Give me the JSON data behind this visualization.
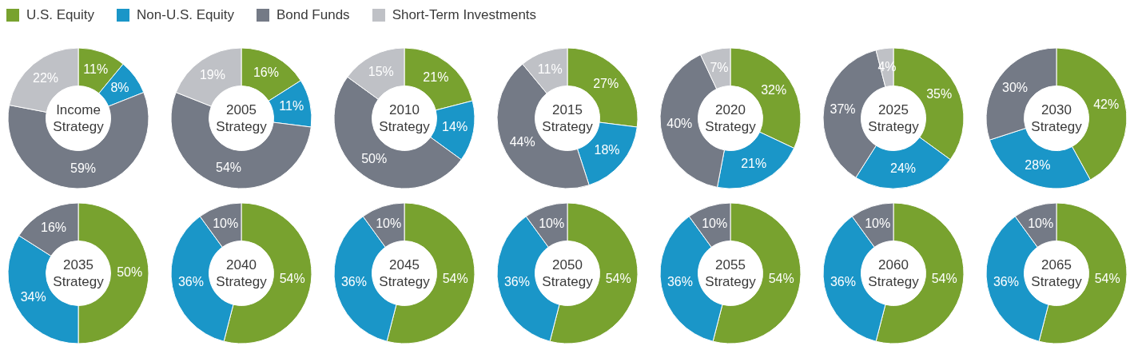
{
  "chart_data": [
    {
      "type": "donut",
      "title": "Income Strategy",
      "categories": [
        "U.S. Equity",
        "Non-U.S. Equity",
        "Bond Funds",
        "Short-Term Investments"
      ],
      "values": [
        11,
        8,
        59,
        22
      ],
      "value_labels": [
        "11%",
        "8%",
        "59%",
        "22%"
      ],
      "colors": [
        "#78a22f",
        "#1a96c8",
        "#747a86",
        "#bfc1c6"
      ],
      "legend": "top"
    },
    {
      "type": "donut",
      "title": "2005 Strategy",
      "categories": [
        null,
        null,
        null,
        null
      ],
      "values": [
        16,
        11,
        54,
        19
      ],
      "value_labels": [
        "16%",
        "11%",
        "54%",
        "19%"
      ],
      "colors": [
        "#78a22f",
        "#1a96c8",
        "#747a86",
        "#bfc1c6"
      ]
    },
    {
      "type": "donut",
      "title": "2010 Strategy",
      "categories": [
        null,
        null,
        null,
        null
      ],
      "values": [
        21,
        14,
        50,
        15
      ],
      "value_labels": [
        "21%",
        "14%",
        "50%",
        "15%"
      ],
      "colors": [
        "#78a22f",
        "#1a96c8",
        "#747a86",
        "#bfc1c6"
      ]
    },
    {
      "type": "donut",
      "title": "2015 Strategy",
      "categories": [
        null,
        null,
        null,
        null
      ],
      "values": [
        27,
        18,
        44,
        11
      ],
      "value_labels": [
        "27%",
        "18%",
        "44%",
        "11%"
      ],
      "colors": [
        "#78a22f",
        "#1a96c8",
        "#747a86",
        "#bfc1c6"
      ]
    },
    {
      "type": "donut",
      "title": "2020 Strategy",
      "categories": [
        null,
        null,
        null,
        null
      ],
      "values": [
        32,
        21,
        40,
        7
      ],
      "value_labels": [
        "32%",
        "21%",
        "40%",
        "7%"
      ],
      "colors": [
        "#78a22f",
        "#1a96c8",
        "#747a86",
        "#bfc1c6"
      ]
    },
    {
      "type": "donut",
      "title": "2025 Strategy",
      "categories": [
        null,
        null,
        null,
        null
      ],
      "values": [
        35,
        24,
        37,
        4
      ],
      "value_labels": [
        "35%",
        "24%",
        "37%",
        "4%"
      ],
      "colors": [
        "#78a22f",
        "#1a96c8",
        "#747a86",
        "#bfc1c6"
      ]
    },
    {
      "type": "donut",
      "title": "2030 Strategy",
      "categories": [
        null,
        null,
        null
      ],
      "values": [
        42,
        28,
        30
      ],
      "value_labels": [
        "42%",
        "28%",
        "30%"
      ],
      "colors": [
        "#78a22f",
        "#1a96c8",
        "#747a86"
      ]
    },
    {
      "type": "donut",
      "title": "2035 Strategy",
      "categories": [
        null,
        null,
        null
      ],
      "values": [
        50,
        34,
        16
      ],
      "value_labels": [
        "50%",
        "34%",
        "16%"
      ],
      "colors": [
        "#78a22f",
        "#1a96c8",
        "#747a86"
      ]
    },
    {
      "type": "donut",
      "title": "2040 Strategy",
      "categories": [
        null,
        null,
        null
      ],
      "values": [
        54,
        36,
        10
      ],
      "value_labels": [
        "54%",
        "36%",
        "10%"
      ],
      "colors": [
        "#78a22f",
        "#1a96c8",
        "#747a86"
      ]
    },
    {
      "type": "donut",
      "title": "2045 Strategy",
      "categories": [
        null,
        null,
        null
      ],
      "values": [
        54,
        36,
        10
      ],
      "value_labels": [
        "54%",
        "36%",
        "10%"
      ],
      "colors": [
        "#78a22f",
        "#1a96c8",
        "#747a86"
      ]
    },
    {
      "type": "donut",
      "title": "2050 Strategy",
      "categories": [
        null,
        null,
        null
      ],
      "values": [
        54,
        36,
        10
      ],
      "value_labels": [
        "54%",
        "36%",
        "10%"
      ],
      "colors": [
        "#78a22f",
        "#1a96c8",
        "#747a86"
      ]
    },
    {
      "type": "donut",
      "title": "2055 Strategy",
      "categories": [
        null,
        null,
        null
      ],
      "values": [
        54,
        36,
        10
      ],
      "value_labels": [
        "54%",
        "36%",
        "10%"
      ],
      "colors": [
        "#78a22f",
        "#1a96c8",
        "#747a86"
      ]
    },
    {
      "type": "donut",
      "title": "2060 Strategy",
      "categories": [
        null,
        null,
        null
      ],
      "values": [
        54,
        36,
        10
      ],
      "value_labels": [
        "54%",
        "36%",
        "10%"
      ],
      "colors": [
        "#78a22f",
        "#1a96c8",
        "#747a86"
      ]
    },
    {
      "type": "donut",
      "title": "2065 Strategy",
      "categories": [
        null,
        null,
        null
      ],
      "values": [
        54,
        36,
        10
      ],
      "value_labels": [
        "54%",
        "36%",
        "10%"
      ],
      "colors": [
        "#78a22f",
        "#1a96c8",
        "#747a86"
      ]
    }
  ]
}
